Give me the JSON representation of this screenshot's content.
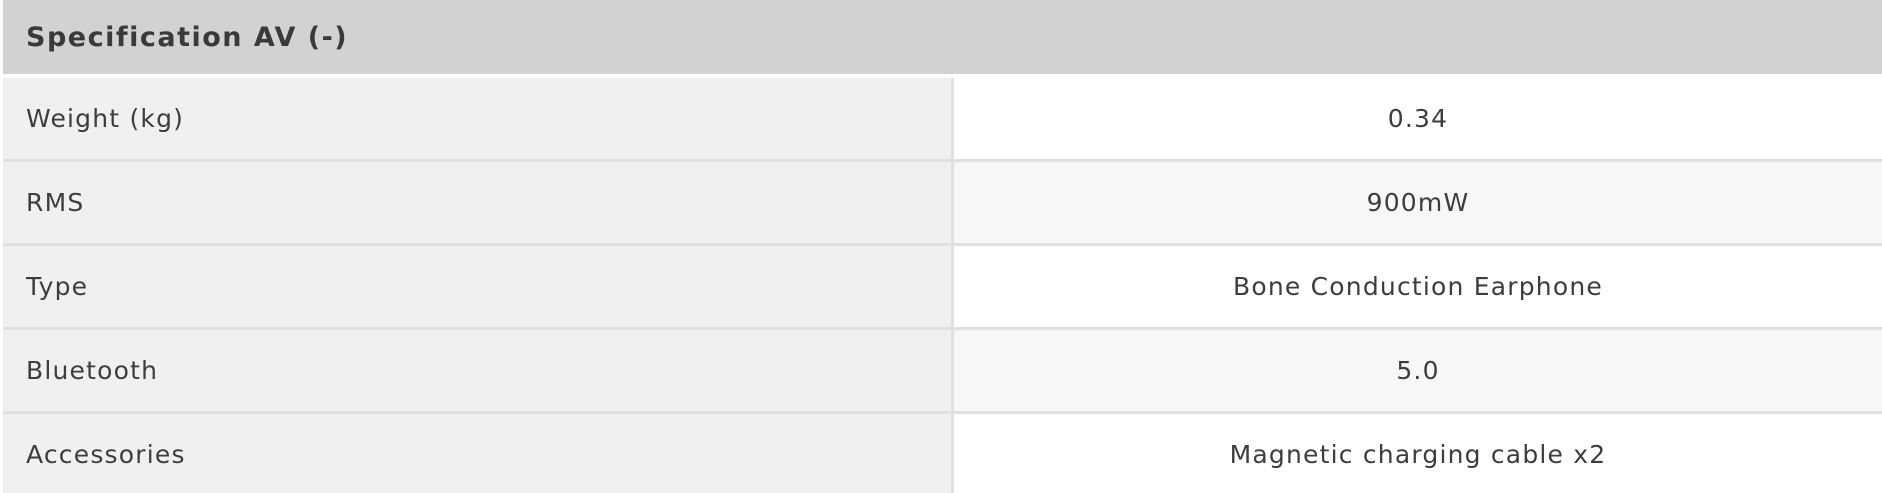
{
  "colors": {
    "header_bg": "#d2d2d4",
    "header_text": "#3a3a3a",
    "label_bg": "#f0f0f0",
    "value_bg": "#ffffff",
    "value_alt_bg": "#f7f7f7",
    "divider": "#e0e0e0",
    "text": "#3d3d3d"
  },
  "header": {
    "title": "Specification AV (-)"
  },
  "table": {
    "rows": [
      {
        "label": "Weight (kg)",
        "value": "0.34"
      },
      {
        "label": "RMS",
        "value": "900mW"
      },
      {
        "label": "Type",
        "value": "Bone Conduction Earphone"
      },
      {
        "label": "Bluetooth",
        "value": "5.0"
      },
      {
        "label": "Accessories",
        "value": "Magnetic charging cable x2"
      }
    ]
  }
}
